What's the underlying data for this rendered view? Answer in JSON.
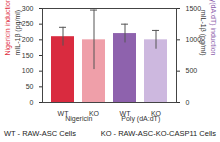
{
  "chart_data": {
    "type": "bar",
    "categories": [
      "WT",
      "KO",
      "WT",
      "KO"
    ],
    "colors": [
      "#d92b3f",
      "#ef9fa9",
      "#8e62ad",
      "#cdb8df"
    ],
    "series": [
      {
        "name": "Nigericin",
        "axis": "y",
        "values": [
          210,
          200,
          null,
          null
        ],
        "errors": [
          30,
          95,
          null,
          null
        ]
      },
      {
        "name": "Poly (dA:dT)",
        "axis": "y2",
        "values": [
          null,
          null,
          1100,
          1000
        ],
        "errors": [
          null,
          null,
          150,
          150
        ]
      }
    ],
    "ylim": [
      0,
      300
    ],
    "yticks": [
      0,
      50,
      100,
      150,
      200,
      250,
      300
    ],
    "y2lim": [
      0,
      1500
    ],
    "y2ticks": [
      0,
      500,
      1000,
      1500
    ],
    "ylabel": "mIL-1β (pg/ml)",
    "y2label": "mIL-1β (pg/ml)",
    "annotations": [
      {
        "text": "Nigericin induction",
        "axis": "y",
        "color": "#e0303f"
      },
      {
        "text": "Poly(dA:dT) induction",
        "axis": "y2",
        "color": "#8e62ad"
      }
    ],
    "caption": [
      "WT - RAW-ASC Cells",
      "KO - RAW-ASC-KO-CASP11 Cells"
    ]
  }
}
